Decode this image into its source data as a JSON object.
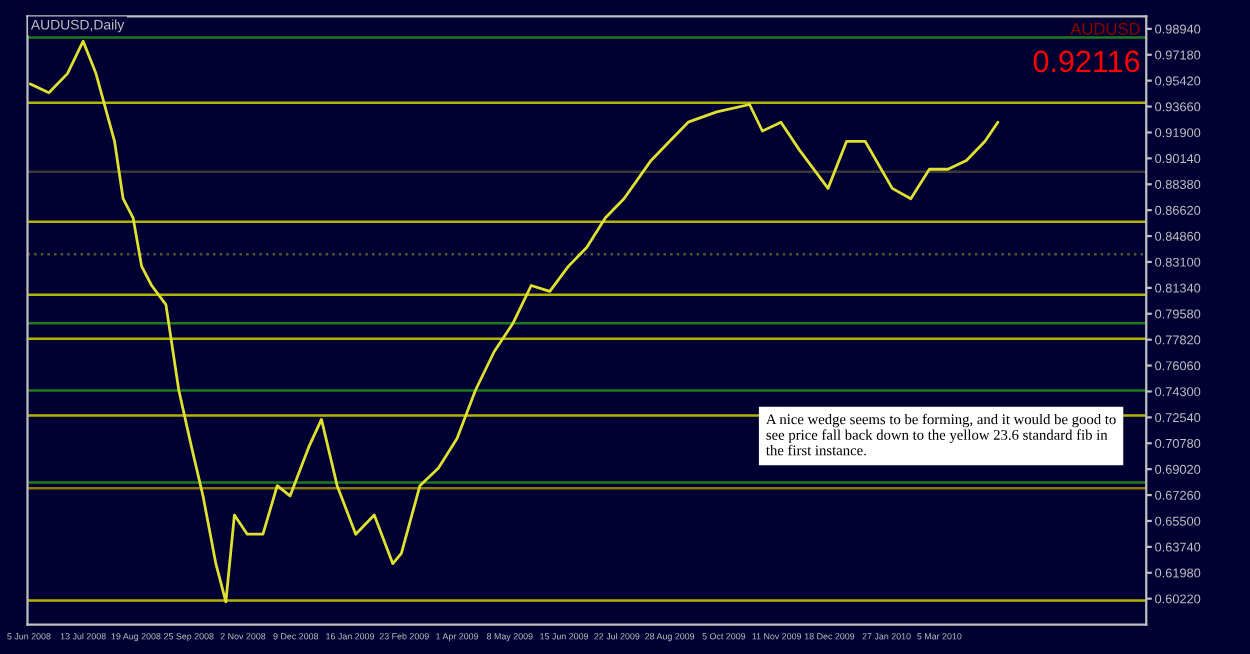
{
  "chart_data": {
    "type": "line",
    "title": "AUDUSD,Daily",
    "x": [
      "2008-06-06",
      "2008-06-19",
      "2008-07-02",
      "2008-07-13",
      "2008-07-22",
      "2008-08-04",
      "2008-08-10",
      "2008-08-17",
      "2008-08-23",
      "2008-08-30",
      "2008-09-09",
      "2008-09-18",
      "2008-09-27",
      "2008-10-05",
      "2008-10-14",
      "2008-10-21",
      "2008-10-27",
      "2008-11-05",
      "2008-11-16",
      "2008-11-26",
      "2008-12-05",
      "2008-12-18",
      "2008-12-27",
      "2009-01-07",
      "2009-01-20",
      "2009-02-02",
      "2009-02-15",
      "2009-02-21",
      "2009-03-06",
      "2009-03-19",
      "2009-04-01",
      "2009-04-14",
      "2009-04-27",
      "2009-05-10",
      "2009-05-23",
      "2009-06-05",
      "2009-06-18",
      "2009-07-01",
      "2009-07-14",
      "2009-07-27",
      "2009-08-15",
      "2009-08-28",
      "2009-09-10",
      "2009-09-30",
      "2009-10-23",
      "2009-11-01",
      "2009-11-14",
      "2009-11-27",
      "2009-12-17",
      "2009-12-30",
      "2010-01-12",
      "2010-01-31",
      "2010-02-13",
      "2010-02-26",
      "2010-03-11",
      "2010-03-24",
      "2010-04-06",
      "2010-04-15"
    ],
    "series": [
      {
        "color": "#e0e030",
        "values": [
          0.952,
          0.946,
          0.959,
          0.981,
          0.959,
          0.913,
          0.874,
          0.861,
          0.828,
          0.815,
          0.802,
          0.744,
          0.705,
          0.672,
          0.626,
          0.6,
          0.659,
          0.646,
          0.646,
          0.679,
          0.672,
          0.705,
          0.724,
          0.679,
          0.646,
          0.659,
          0.626,
          0.633,
          0.679,
          0.691,
          0.711,
          0.744,
          0.77,
          0.789,
          0.815,
          0.811,
          0.828,
          0.841,
          0.861,
          0.874,
          0.9,
          0.913,
          0.926,
          0.933,
          0.938,
          0.92,
          0.926,
          0.907,
          0.881,
          0.913,
          0.913,
          0.881,
          0.874,
          0.894,
          0.894,
          0.9,
          0.913,
          0.926
        ]
      }
    ],
    "xlim": [
      "2008-06-04",
      "2010-07-28"
    ],
    "xticks": [
      {
        "value": "2008-06-05",
        "label": "5 Jun 2008"
      },
      {
        "value": "2008-07-13",
        "label": "13 Jul 2008"
      },
      {
        "value": "2008-08-19",
        "label": "19 Aug 2008"
      },
      {
        "value": "2008-09-25",
        "label": "25 Sep 2008"
      },
      {
        "value": "2008-11-02",
        "label": "2 Nov 2008"
      },
      {
        "value": "2008-12-09",
        "label": "9 Dec 2008"
      },
      {
        "value": "2009-01-16",
        "label": "16 Jan 2009"
      },
      {
        "value": "2009-02-23",
        "label": "23 Feb 2009"
      },
      {
        "value": "2009-04-01",
        "label": "1 Apr 2009"
      },
      {
        "value": "2009-05-08",
        "label": "8 May 2009"
      },
      {
        "value": "2009-06-15",
        "label": "15 Jun 2009"
      },
      {
        "value": "2009-07-22",
        "label": "22 Jul 2009"
      },
      {
        "value": "2009-08-28",
        "label": "28 Aug 2009"
      },
      {
        "value": "2009-10-05",
        "label": "5 Oct 2009"
      },
      {
        "value": "2009-11-11",
        "label": "11 Nov 2009"
      },
      {
        "value": "2009-12-18",
        "label": "18 Dec 2009"
      },
      {
        "value": "2010-01-27",
        "label": "27 Jan 2010"
      },
      {
        "value": "2010-03-05",
        "label": "5 Mar 2010"
      }
    ],
    "ylim": [
      0.5846,
      0.9979
    ],
    "yticks": [
      {
        "value": 0.9894,
        "label": "0.98940"
      },
      {
        "value": 0.9718,
        "label": "0.97180"
      },
      {
        "value": 0.9542,
        "label": "0.95420"
      },
      {
        "value": 0.9366,
        "label": "0.93660"
      },
      {
        "value": 0.919,
        "label": "0.91900"
      },
      {
        "value": 0.9014,
        "label": "0.90140"
      },
      {
        "value": 0.8838,
        "label": "0.88380"
      },
      {
        "value": 0.8662,
        "label": "0.86620"
      },
      {
        "value": 0.8486,
        "label": "0.84860"
      },
      {
        "value": 0.831,
        "label": "0.83100"
      },
      {
        "value": 0.8134,
        "label": "0.81340"
      },
      {
        "value": 0.7958,
        "label": "0.79580"
      },
      {
        "value": 0.7782,
        "label": "0.77820"
      },
      {
        "value": 0.7606,
        "label": "0.76060"
      },
      {
        "value": 0.743,
        "label": "0.74300"
      },
      {
        "value": 0.7254,
        "label": "0.72540"
      },
      {
        "value": 0.7078,
        "label": "0.70780"
      },
      {
        "value": 0.6902,
        "label": "0.69020"
      },
      {
        "value": 0.6726,
        "label": "0.67260"
      },
      {
        "value": 0.655,
        "label": "0.65500"
      },
      {
        "value": 0.6374,
        "label": "0.63740"
      },
      {
        "value": 0.6198,
        "label": "0.61980"
      },
      {
        "value": 0.6022,
        "label": "0.60220"
      }
    ],
    "ref_lines": [
      {
        "axis": "y",
        "value": 0.9835,
        "color": "#1e7a1e"
      },
      {
        "axis": "y",
        "value": 0.9392,
        "color": "#b4b400"
      },
      {
        "axis": "y",
        "value": 0.8923,
        "color": "#3a3a3a"
      },
      {
        "axis": "y",
        "value": 0.8584,
        "color": "#b4b400"
      },
      {
        "axis": "y",
        "value": 0.8362,
        "color": "#555530",
        "line_style": "dotted"
      },
      {
        "axis": "y",
        "value": 0.8088,
        "color": "#b4b400"
      },
      {
        "axis": "y",
        "value": 0.7893,
        "color": "#1e7a1e"
      },
      {
        "axis": "y",
        "value": 0.7789,
        "color": "#b4b400"
      },
      {
        "axis": "y",
        "value": 0.7437,
        "color": "#1e7a1e"
      },
      {
        "axis": "y",
        "value": 0.7267,
        "color": "#b4b400"
      },
      {
        "axis": "y",
        "value": 0.6811,
        "color": "#1e7a1e"
      },
      {
        "axis": "y",
        "value": 0.6772,
        "color": "#8a7a00"
      },
      {
        "axis": "y",
        "value": 0.6009,
        "color": "#b4b400"
      }
    ],
    "annotations": [
      "AUDUSD",
      "0.92116",
      "A nice wedge seems to be forming, and it would be good to see price fall back down to the yellow 23.6 standard fib in the first instance."
    ],
    "grid": false,
    "legend": false,
    "marker": "none",
    "line_style": "solid"
  }
}
